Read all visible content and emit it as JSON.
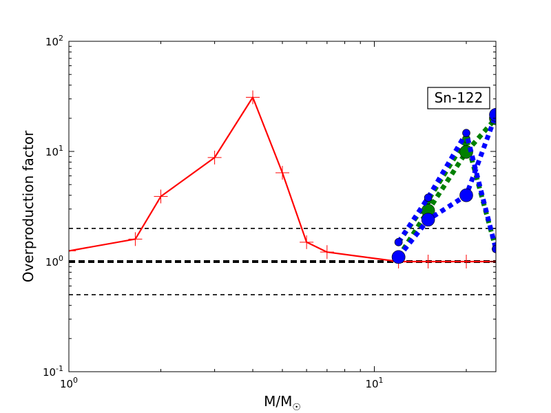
{
  "chart_data": {
    "type": "line",
    "xscale": "log",
    "yscale": "log",
    "xlim": [
      1,
      25
    ],
    "ylim": [
      0.1,
      100
    ],
    "xlabel": "M/M",
    "xlabel_sub": "☉",
    "ylabel": "Overproduction factor",
    "x_ticks": [
      {
        "value": 1,
        "base": "10",
        "exp": "0"
      },
      {
        "value": 10,
        "base": "10",
        "exp": "1"
      }
    ],
    "y_ticks": [
      {
        "value": 0.1,
        "base": "10",
        "exp": "-1"
      },
      {
        "value": 1,
        "base": "10",
        "exp": "0"
      },
      {
        "value": 10,
        "base": "10",
        "exp": "1"
      },
      {
        "value": 100,
        "base": "10",
        "exp": "2"
      }
    ],
    "annotation": "Sn-122",
    "reference_lines": [
      {
        "y": 2.0,
        "style": "dashed",
        "weight": "thin"
      },
      {
        "y": 1.0,
        "style": "dashed",
        "weight": "thick"
      },
      {
        "y": 0.5,
        "style": "dashed",
        "weight": "thin"
      }
    ],
    "series": [
      {
        "color": "#ff0000",
        "style": "solid",
        "marker": "plus",
        "points": [
          [
            1.0,
            1.25
          ],
          [
            1.65,
            1.6
          ],
          [
            2.0,
            3.9
          ],
          [
            3.0,
            8.8
          ],
          [
            4.0,
            31.0
          ],
          [
            5.0,
            6.4
          ],
          [
            6.0,
            1.5
          ],
          [
            7.0,
            1.22
          ],
          [
            12.0,
            1.0
          ],
          [
            15.0,
            1.0
          ],
          [
            20.0,
            1.0
          ],
          [
            25.0,
            1.0
          ]
        ]
      },
      {
        "color": "#008000",
        "style": "dotted",
        "marker": "circle-small",
        "points": [
          [
            12.0,
            1.5
          ],
          [
            15.0,
            3.6
          ],
          [
            20.0,
            13.0
          ],
          [
            25.0,
            1.3
          ]
        ]
      },
      {
        "color": "#008000",
        "style": "dotted",
        "marker": "circle-large",
        "points": [
          [
            12.0,
            1.1
          ],
          [
            15.0,
            2.9
          ],
          [
            20.0,
            9.9
          ],
          [
            25.0,
            20.0
          ]
        ]
      },
      {
        "color": "#0000ff",
        "style": "dotted",
        "marker": "circle-small",
        "points": [
          [
            12.0,
            1.5
          ],
          [
            15.0,
            3.8
          ],
          [
            20.0,
            14.7
          ],
          [
            25.0,
            1.3
          ]
        ]
      },
      {
        "color": "#0000ff",
        "style": "dotted",
        "marker": "circle-large",
        "points": [
          [
            12.0,
            1.1
          ],
          [
            15.0,
            2.4
          ],
          [
            20.0,
            4.0
          ],
          [
            25.0,
            21.5
          ]
        ]
      }
    ]
  }
}
